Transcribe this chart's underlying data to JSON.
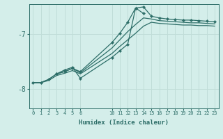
{
  "bg_color": "#d4eeea",
  "line_color": "#2d6e68",
  "grid_color": "#c0ddd8",
  "xlabel": "Humidex (Indice chaleur)",
  "xticks": [
    0,
    1,
    2,
    3,
    4,
    5,
    6,
    10,
    11,
    12,
    13,
    14,
    15,
    16,
    17,
    18,
    19,
    20,
    21,
    22,
    23
  ],
  "yticks": [
    -8,
    -7
  ],
  "ylim": [
    -8.35,
    -6.45
  ],
  "xlim": [
    -0.5,
    23.5
  ],
  "lines": [
    {
      "x": [
        0,
        1,
        2,
        3,
        4,
        5,
        6,
        10,
        11,
        12,
        13,
        14,
        15,
        16,
        17,
        18,
        19,
        20,
        21,
        22,
        23
      ],
      "y": [
        -7.88,
        -7.88,
        -7.82,
        -7.72,
        -7.68,
        -7.62,
        -7.68,
        -7.15,
        -6.98,
        -6.78,
        -6.52,
        -6.5,
        -6.67,
        -6.7,
        -6.72,
        -6.73,
        -6.74,
        -6.74,
        -6.75,
        -6.76,
        -6.77
      ],
      "marker": true,
      "lw": 0.9
    },
    {
      "x": [
        0,
        1,
        2,
        3,
        4,
        5,
        6,
        10,
        11,
        12,
        13,
        14,
        15,
        16,
        17,
        18,
        19,
        20,
        21,
        22,
        23
      ],
      "y": [
        -7.88,
        -7.88,
        -7.82,
        -7.72,
        -7.68,
        -7.62,
        -7.7,
        -7.25,
        -7.1,
        -6.95,
        -6.82,
        -6.7,
        -6.72,
        -6.75,
        -6.76,
        -6.77,
        -6.78,
        -6.79,
        -6.79,
        -6.8,
        -6.81
      ],
      "marker": false,
      "lw": 0.9
    },
    {
      "x": [
        0,
        1,
        2,
        3,
        4,
        5,
        6,
        10,
        11,
        12,
        13,
        14,
        15,
        16,
        17,
        18,
        19,
        20,
        21,
        22,
        23
      ],
      "y": [
        -7.88,
        -7.88,
        -7.84,
        -7.75,
        -7.71,
        -7.66,
        -7.72,
        -7.35,
        -7.22,
        -7.1,
        -6.98,
        -6.85,
        -6.78,
        -6.8,
        -6.81,
        -6.82,
        -6.83,
        -6.83,
        -6.84,
        -6.84,
        -6.85
      ],
      "marker": false,
      "lw": 0.9
    },
    {
      "x": [
        3,
        4,
        5,
        6,
        10,
        11,
        12,
        13,
        14
      ],
      "y": [
        -7.72,
        -7.65,
        -7.6,
        -7.8,
        -7.42,
        -7.3,
        -7.18,
        -6.52,
        -6.62
      ],
      "marker": true,
      "lw": 0.9
    }
  ]
}
